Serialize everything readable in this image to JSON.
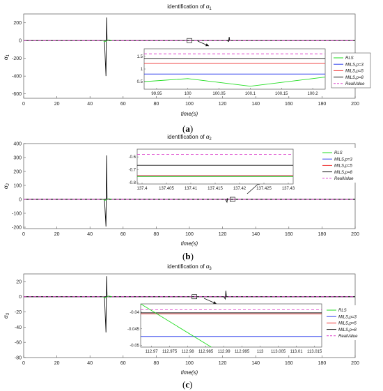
{
  "panels": [
    {
      "caption_letter": "a",
      "chart_data": {
        "type": "line",
        "title": "identification of α1",
        "xlabel": "time(s)",
        "ylabel": "α1",
        "xlim": [
          0,
          200
        ],
        "ylim": [
          -650,
          300
        ],
        "xticks": [
          0,
          20,
          40,
          60,
          80,
          100,
          120,
          140,
          160,
          180,
          200
        ],
        "yticks": [
          -600,
          -400,
          -200,
          0,
          200
        ],
        "spikes": [
          {
            "x": 50,
            "up": 260,
            "down": -400
          },
          {
            "x": 124,
            "up": 40,
            "down": -10
          }
        ],
        "grid": false,
        "legend_position": "right",
        "series": [
          {
            "name": "RLS",
            "color": "#22dd22",
            "dash": false
          },
          {
            "name": "MILS,p=3",
            "color": "#3344ee",
            "dash": false
          },
          {
            "name": "MILS,p=5",
            "color": "#ee3333",
            "dash": false
          },
          {
            "name": "MILS,p=8",
            "color": "#111111",
            "dash": false
          },
          {
            "name": "RealValue",
            "color": "#dd44cc",
            "dash": true
          }
        ],
        "inset": {
          "xlim": [
            99.93,
            100.22
          ],
          "ylim": [
            0.2,
            1.8
          ],
          "xticks": [
            99.95,
            100,
            100.05,
            100.1,
            100.15,
            100.2
          ],
          "yticks": [
            0.5,
            1,
            1.5
          ],
          "lines": [
            {
              "series": "RealValue",
              "y": 1.6
            },
            {
              "series": "MILS,p=8",
              "y": 1.42
            },
            {
              "series": "MILS,p=5",
              "y": 1.22
            },
            {
              "series": "MILS,p=3",
              "y": 0.8
            }
          ],
          "rls_points": [
            [
              99.93,
              0.5
            ],
            [
              100.0,
              0.62
            ],
            [
              100.1,
              0.32
            ],
            [
              100.22,
              0.68
            ]
          ]
        },
        "zoom_box_x": 100.0
      }
    },
    {
      "caption_letter": "b",
      "chart_data": {
        "type": "line",
        "title": "identification of α2",
        "xlabel": "time(s)",
        "ylabel": "α2",
        "xlim": [
          0,
          200
        ],
        "ylim": [
          -210,
          400
        ],
        "xticks": [
          0,
          20,
          40,
          60,
          80,
          100,
          120,
          140,
          160,
          180,
          200
        ],
        "yticks": [
          -200,
          -100,
          0,
          100,
          200,
          300,
          400
        ],
        "spikes": [
          {
            "x": 50,
            "up": 315,
            "down": -195
          },
          {
            "x": 123,
            "up": 5,
            "down": -20
          }
        ],
        "grid": false,
        "legend_position": "top-right",
        "series": [
          {
            "name": "RLS",
            "color": "#22dd22",
            "dash": false
          },
          {
            "name": "MILS,p=3",
            "color": "#3344ee",
            "dash": false
          },
          {
            "name": "MILS,p=5",
            "color": "#ee3333",
            "dash": false
          },
          {
            "name": "MILS,p=8",
            "color": "#111111",
            "dash": false
          },
          {
            "name": "RealValue",
            "color": "#dd44cc",
            "dash": true
          }
        ],
        "inset": {
          "xlim": [
            137.399,
            137.431
          ],
          "ylim": [
            -0.81,
            -0.54
          ],
          "xticks": [
            137.4,
            137.405,
            137.41,
            137.415,
            137.42,
            137.425,
            137.43
          ],
          "yticks": [
            -0.8,
            -0.7,
            -0.6
          ],
          "lines": [
            {
              "series": "RealValue",
              "y": -0.58
            },
            {
              "series": "MILS,p=8",
              "y": -0.665
            },
            {
              "series": "MILS,p=5",
              "y": -0.745
            },
            {
              "series": "MILS,p=3",
              "y": -0.75
            },
            {
              "series": "RLS",
              "y": -0.752
            }
          ],
          "rls_points": []
        },
        "zoom_box_x": 126
      }
    },
    {
      "caption_letter": "c",
      "chart_data": {
        "type": "line",
        "title": "identification of α3",
        "xlabel": "time(s)",
        "ylabel": "α3",
        "xlim": [
          0,
          200
        ],
        "ylim": [
          -80,
          30
        ],
        "xticks": [
          0,
          20,
          40,
          60,
          80,
          100,
          120,
          140,
          160,
          180,
          200
        ],
        "yticks": [
          -80,
          -60,
          -40,
          -20,
          0,
          20
        ],
        "spikes": [
          {
            "x": 50,
            "up": 27,
            "down": -47
          },
          {
            "x": 122,
            "up": 8,
            "down": -3
          }
        ],
        "grid": false,
        "legend_position": "right",
        "series": [
          {
            "name": "RLS",
            "color": "#22dd22",
            "dash": false
          },
          {
            "name": "MILS,p=3",
            "color": "#3344ee",
            "dash": false
          },
          {
            "name": "MILS,p=5",
            "color": "#ee3333",
            "dash": false
          },
          {
            "name": "MILS,p=8",
            "color": "#111111",
            "dash": false
          },
          {
            "name": "RealValue",
            "color": "#dd44cc",
            "dash": true
          }
        ],
        "inset": {
          "xlim": [
            112.967,
            113.017
          ],
          "ylim": [
            -0.0505,
            -0.0375
          ],
          "xticks": [
            112.97,
            112.975,
            112.98,
            112.985,
            112.99,
            112.995,
            113,
            113.005,
            113.01,
            113.015
          ],
          "yticks": [
            -0.05,
            -0.045,
            -0.04
          ],
          "lines": [
            {
              "series": "RealValue",
              "y": -0.0393
            },
            {
              "series": "MILS,p=8",
              "y": -0.0402
            },
            {
              "series": "MILS,p=5",
              "y": -0.0405
            },
            {
              "series": "MILS,p=3",
              "y": -0.0473
            }
          ],
          "rls_points": [
            [
              112.967,
              -0.0375
            ],
            [
              112.9865,
              -0.0505
            ]
          ]
        },
        "zoom_box_x": 103
      }
    }
  ]
}
